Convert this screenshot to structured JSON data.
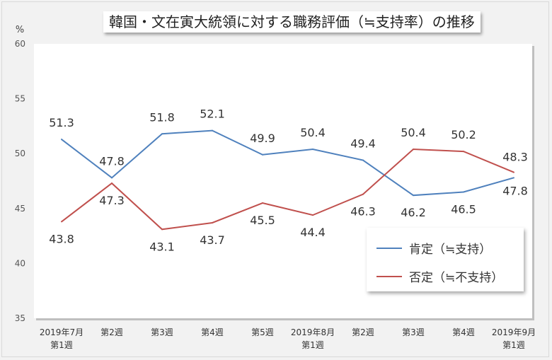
{
  "chart_data": {
    "type": "line",
    "title": "韓国・文在寅大統領に対する職務評価（≒支持率）の推移",
    "ylabel": "%",
    "ylim": [
      35,
      60
    ],
    "yticks": [
      35,
      40,
      45,
      50,
      55,
      60
    ],
    "grid": false,
    "legend_placement": "bottom-right",
    "categories": [
      "2019年7月\n第1週",
      "第2週",
      "第3週",
      "第4週",
      "第5週",
      "2019年8月\n第1週",
      "第2週",
      "第3週",
      "第4週",
      "2019年9月\n第1週"
    ],
    "series": [
      {
        "name": "肯定（≒支持）",
        "color": "#4f81bd",
        "values": [
          51.3,
          47.8,
          51.8,
          52.1,
          49.9,
          50.4,
          49.4,
          46.2,
          46.5,
          47.8
        ]
      },
      {
        "name": "否定（≒不支持）",
        "color": "#c0504d",
        "values": [
          43.8,
          47.3,
          43.1,
          43.7,
          45.5,
          44.4,
          46.3,
          50.4,
          50.2,
          48.3
        ]
      }
    ]
  }
}
